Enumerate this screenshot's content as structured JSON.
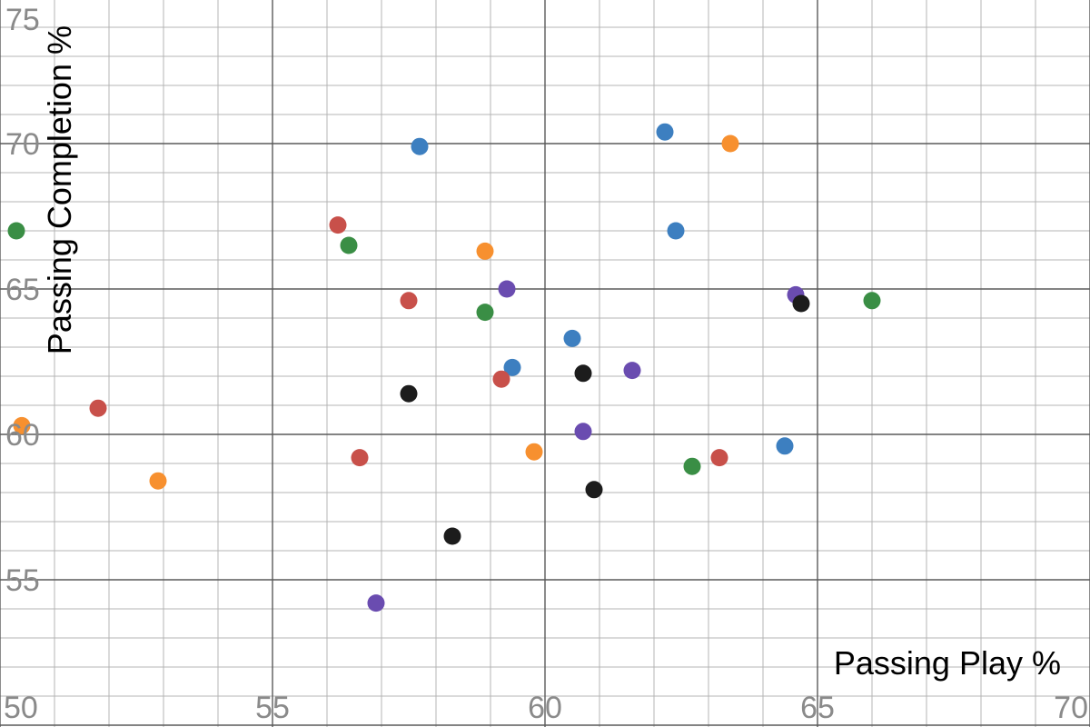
{
  "chart_data": {
    "type": "scatter",
    "xlabel": "Passing Play %",
    "ylabel": "Passing Completion %",
    "xlim": [
      50,
      70
    ],
    "ylim": [
      50,
      75
    ],
    "major_step": 5,
    "minor_step": 1,
    "grid": true,
    "x_ticks": [
      "50",
      "55",
      "60",
      "65",
      "70"
    ],
    "y_ticks": [
      "50",
      "55",
      "60",
      "65",
      "70",
      "75"
    ],
    "series": [
      {
        "color": "#3d7fc0",
        "points": [
          [
            57.7,
            69.9
          ],
          [
            62.2,
            70.4
          ],
          [
            62.4,
            67.0
          ],
          [
            60.5,
            63.3
          ],
          [
            59.4,
            62.3
          ],
          [
            64.4,
            59.6
          ]
        ]
      },
      {
        "color": "#f7902f",
        "points": [
          [
            63.4,
            70.0
          ],
          [
            58.9,
            66.3
          ],
          [
            50.4,
            60.3
          ],
          [
            52.9,
            58.4
          ],
          [
            59.8,
            59.4
          ]
        ]
      },
      {
        "color": "#c8504a",
        "points": [
          [
            56.2,
            67.2
          ],
          [
            57.5,
            64.6
          ],
          [
            59.2,
            61.9
          ],
          [
            51.8,
            60.9
          ],
          [
            56.6,
            59.2
          ],
          [
            63.2,
            59.2
          ]
        ]
      },
      {
        "color": "#3a8e45",
        "points": [
          [
            50.3,
            67.0
          ],
          [
            56.4,
            66.5
          ],
          [
            58.9,
            64.2
          ],
          [
            66.0,
            64.6
          ],
          [
            62.7,
            58.9
          ]
        ]
      },
      {
        "color": "#6a4cb0",
        "points": [
          [
            59.3,
            65.0
          ],
          [
            64.6,
            64.8
          ],
          [
            61.6,
            62.2
          ],
          [
            60.7,
            60.1
          ],
          [
            56.9,
            54.2
          ]
        ]
      },
      {
        "color": "#1c1c1c",
        "points": [
          [
            64.7,
            64.5
          ],
          [
            60.7,
            62.1
          ],
          [
            57.5,
            61.4
          ],
          [
            60.9,
            58.1
          ],
          [
            58.3,
            56.5
          ]
        ]
      }
    ]
  }
}
